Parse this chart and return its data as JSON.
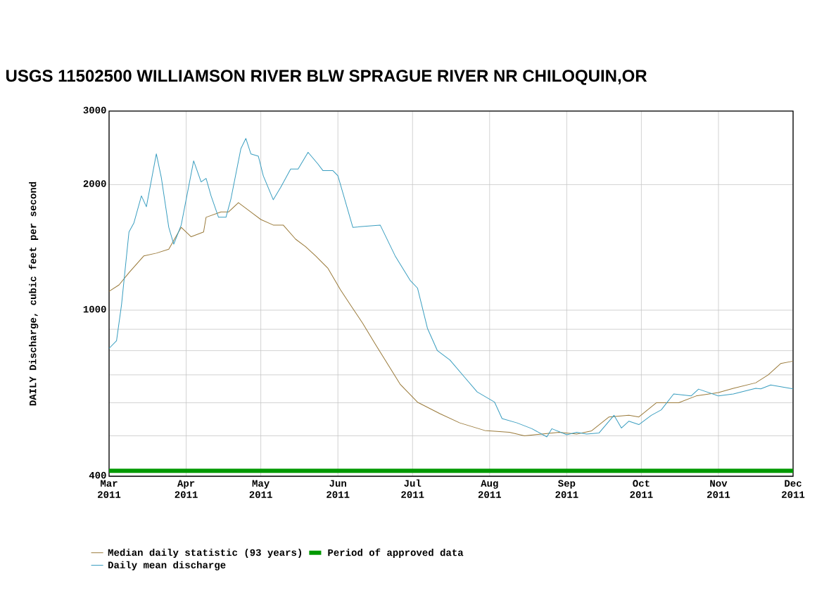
{
  "chart_data": {
    "type": "line",
    "title": "USGS 11502500 WILLIAMSON RIVER BLW SPRAGUE RIVER NR CHILOQUIN,OR",
    "ylabel": "DAILY Discharge, cubic feet per second",
    "series": [
      {
        "name": "Median daily statistic (93 years)",
        "color": "#9a7a3a",
        "x": [
          "2011-03-01",
          "2011-03-05",
          "2011-03-09",
          "2011-03-15",
          "2011-03-20",
          "2011-03-25",
          "2011-03-30",
          "2011-04-03",
          "2011-04-08",
          "2011-04-09",
          "2011-04-15",
          "2011-04-18",
          "2011-04-22",
          "2011-04-27",
          "2011-05-01",
          "2011-05-06",
          "2011-05-10",
          "2011-05-15",
          "2011-05-19",
          "2011-05-23",
          "2011-05-28",
          "2011-06-02",
          "2011-06-06",
          "2011-06-11",
          "2011-06-16",
          "2011-06-26",
          "2011-07-03",
          "2011-07-12",
          "2011-07-20",
          "2011-07-30",
          "2011-08-09",
          "2011-08-15",
          "2011-08-22",
          "2011-08-29",
          "2011-09-05",
          "2011-09-11",
          "2011-09-18",
          "2011-09-26",
          "2011-09-30",
          "2011-10-07",
          "2011-10-16",
          "2011-10-23",
          "2011-11-01",
          "2011-11-07",
          "2011-11-16",
          "2011-11-21",
          "2011-11-26",
          "2011-12-01"
        ],
        "values": [
          1110,
          1150,
          1230,
          1350,
          1370,
          1400,
          1580,
          1500,
          1540,
          1670,
          1720,
          1720,
          1810,
          1720,
          1650,
          1600,
          1600,
          1480,
          1420,
          1350,
          1260,
          1120,
          1030,
          930,
          830,
          665,
          602,
          565,
          537,
          515,
          510,
          500,
          505,
          510,
          505,
          514,
          555,
          560,
          555,
          600,
          600,
          623,
          635,
          650,
          670,
          700,
          745,
          755
        ]
      },
      {
        "name": "Daily mean discharge",
        "color": "#3a9ec0",
        "x": [
          "2011-03-01",
          "2011-03-04",
          "2011-03-06",
          "2011-03-09",
          "2011-03-11",
          "2011-03-14",
          "2011-03-16",
          "2011-03-20",
          "2011-03-22",
          "2011-03-25",
          "2011-03-27",
          "2011-03-30",
          "2011-04-04",
          "2011-04-07",
          "2011-04-09",
          "2011-04-11",
          "2011-04-14",
          "2011-04-17",
          "2011-04-19",
          "2011-04-23",
          "2011-04-25",
          "2011-04-27",
          "2011-04-30",
          "2011-05-02",
          "2011-05-06",
          "2011-05-09",
          "2011-05-13",
          "2011-05-16",
          "2011-05-20",
          "2011-05-24",
          "2011-05-26",
          "2011-05-30",
          "2011-06-01",
          "2011-06-07",
          "2011-06-18",
          "2011-06-24",
          "2011-06-30",
          "2011-07-03",
          "2011-07-07",
          "2011-07-11",
          "2011-07-16",
          "2011-07-22",
          "2011-07-27",
          "2011-08-03",
          "2011-08-06",
          "2011-08-12",
          "2011-08-18",
          "2011-08-24",
          "2011-08-26",
          "2011-09-01",
          "2011-09-05",
          "2011-09-09",
          "2011-09-14",
          "2011-09-20",
          "2011-09-23",
          "2011-09-26",
          "2011-09-30",
          "2011-10-05",
          "2011-10-09",
          "2011-10-14",
          "2011-10-21",
          "2011-10-24",
          "2011-11-01",
          "2011-11-07",
          "2011-11-16",
          "2011-11-18",
          "2011-11-22",
          "2011-12-01"
        ],
        "values": [
          810,
          845,
          1030,
          1540,
          1620,
          1880,
          1770,
          2370,
          2080,
          1580,
          1440,
          1600,
          2280,
          2030,
          2070,
          1880,
          1670,
          1670,
          1850,
          2440,
          2580,
          2370,
          2340,
          2100,
          1840,
          1970,
          2180,
          2180,
          2390,
          2240,
          2160,
          2160,
          2100,
          1580,
          1600,
          1350,
          1180,
          1130,
          905,
          800,
          760,
          690,
          637,
          602,
          550,
          537,
          520,
          497,
          520,
          503,
          510,
          505,
          508,
          560,
          522,
          542,
          532,
          560,
          577,
          630,
          623,
          647,
          623,
          630,
          650,
          648,
          662,
          648
        ]
      }
    ],
    "ref_lines": [
      {
        "axis": "y",
        "value": 412,
        "label": "Period of approved data",
        "color": "#009900"
      }
    ],
    "xlim": [
      "2011-03-01",
      "2011-12-01"
    ],
    "xticks": [
      {
        "value": "2011-03-01",
        "label": "Mar 2011"
      },
      {
        "value": "2011-04-01",
        "label": "Apr 2011"
      },
      {
        "value": "2011-05-01",
        "label": "May 2011"
      },
      {
        "value": "2011-06-01",
        "label": "Jun 2011"
      },
      {
        "value": "2011-07-01",
        "label": "Jul 2011"
      },
      {
        "value": "2011-08-01",
        "label": "Aug 2011"
      },
      {
        "value": "2011-09-01",
        "label": "Sep 2011"
      },
      {
        "value": "2011-10-01",
        "label": "Oct 2011"
      },
      {
        "value": "2011-11-01",
        "label": "Nov 2011"
      },
      {
        "value": "2011-12-01",
        "label": "Dec 2011"
      }
    ],
    "ylim": [
      400,
      3000
    ],
    "yticks": [
      400,
      {
        "value": 500,
        "label": null
      },
      {
        "value": 600,
        "label": null
      },
      {
        "value": 700,
        "label": null
      },
      {
        "value": 800,
        "label": null
      },
      {
        "value": 900,
        "label": null
      },
      1000,
      2000,
      3000
    ],
    "log": "y",
    "grid": true,
    "legend": "bottom",
    "marker": "none",
    "line_style": "solid"
  }
}
